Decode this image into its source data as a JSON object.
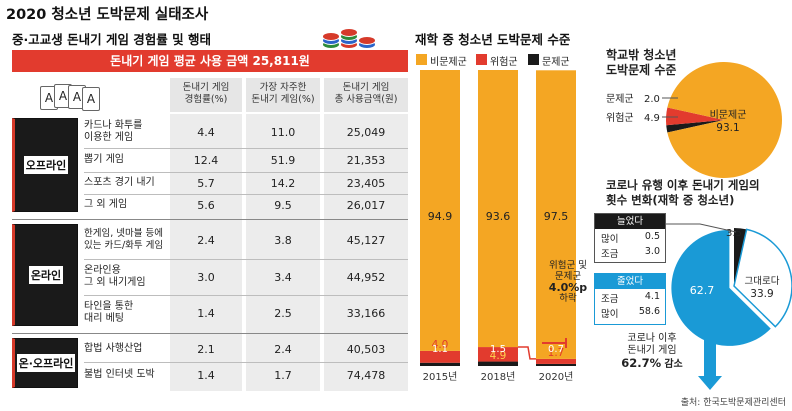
{
  "main_title": "2020 청소년 도박문제 실태조사",
  "left": {
    "title": "중·고교생 돈내기 게임 경험률 및 행태",
    "banner": "돈내기 게임 평균 사용 금액 25,811원",
    "headers": [
      "돈내기 게임\n경험률(%)",
      "가장 자주한\n돈내기 게임(%)",
      "돈내기 게임\n총 사용금액(원)"
    ],
    "cards": [
      "A",
      "A",
      "A",
      "A"
    ],
    "groups": [
      {
        "label": "오프라인",
        "rows": [
          {
            "name": "카드나 화투를\n이용한 게임",
            "v1": "4.4",
            "v2": "11.0",
            "v3": "25,049"
          },
          {
            "name": "뽑기 게임",
            "v1": "12.4",
            "v2": "51.9",
            "v3": "21,353"
          },
          {
            "name": "스포츠 경기 내기",
            "v1": "5.7",
            "v2": "14.2",
            "v3": "23,405"
          },
          {
            "name": "그 외 게임",
            "v1": "5.6",
            "v2": "9.5",
            "v3": "26,017"
          }
        ]
      },
      {
        "label": "온라인",
        "rows": [
          {
            "name": "한게임, 넷마블 등에\n있는 카드/화투 게임",
            "v1": "2.4",
            "v2": "3.8",
            "v3": "45,127"
          },
          {
            "name": "온라인용\n그 외 내기게임",
            "v1": "3.0",
            "v2": "3.4",
            "v3": "44,952"
          },
          {
            "name": "타인을 통한\n대리 베팅",
            "v1": "1.4",
            "v2": "2.5",
            "v3": "33,166"
          }
        ]
      },
      {
        "label": "온·오프라인",
        "rows": [
          {
            "name": "합법 사행산업",
            "v1": "2.1",
            "v2": "2.4",
            "v3": "40,503"
          },
          {
            "name": "불법 인터넷 도박",
            "v1": "1.4",
            "v2": "1.7",
            "v3": "74,478"
          }
        ]
      }
    ]
  },
  "middle": {
    "title": "재학 중 청소년 도박문제 수준",
    "legend": [
      "비문제군",
      "위험군",
      "문제군"
    ],
    "callout": [
      "위험군 및",
      "문제군",
      "4.0%p",
      "하락"
    ],
    "colors": {
      "nonproblem": "#f4a623",
      "risk": "#e23b2e",
      "problem": "#1a1a1a"
    }
  },
  "right_top": {
    "title": "학교밖 청소년\n도박문제 수준",
    "labels": {
      "nonproblem": "비문제군",
      "problem": "문제군",
      "risk": "위험군"
    }
  },
  "right_bottom": {
    "title": "코로나 유행 이후 돈내기 게임의\n횟수 변화(재학 중 청소년)",
    "decreased": {
      "title": "늘었다",
      "rows": [
        {
          "label": "많이",
          "value": "0.5"
        },
        {
          "label": "조금",
          "value": "3.0"
        }
      ]
    },
    "increased": {
      "title": "줄었다",
      "rows": [
        {
          "label": "조금",
          "value": "4.1"
        },
        {
          "label": "많이",
          "value": "58.6"
        }
      ]
    },
    "same_label": "그대로다",
    "conclusion": [
      "코로나 이후",
      "돈내기 게임",
      "62.7%",
      "감소"
    ]
  },
  "source": "출처: 한국도박문제관리센터",
  "chart_data": [
    {
      "type": "bar",
      "title": "재학 중 청소년 도박문제 수준",
      "categories": [
        "2015년",
        "2018년",
        "2020년"
      ],
      "series": [
        {
          "name": "비문제군",
          "values": [
            94.9,
            93.6,
            97.5
          ]
        },
        {
          "name": "위험군",
          "values": [
            4.0,
            4.9,
            1.7
          ]
        },
        {
          "name": "문제군",
          "values": [
            1.1,
            1.5,
            0.7
          ]
        }
      ],
      "stacked": true,
      "ylim": [
        0,
        100
      ]
    },
    {
      "type": "pie",
      "title": "학교밖 청소년 도박문제 수준",
      "labels": [
        "비문제군",
        "문제군",
        "위험군"
      ],
      "values": [
        93.1,
        2.0,
        4.9
      ]
    },
    {
      "type": "pie",
      "title": "코로나 유행 이후 돈내기 게임의 횟수 변화(재학 중 청소년)",
      "labels": [
        "늘었다",
        "그대로다",
        "줄었다"
      ],
      "values": [
        3.5,
        33.9,
        62.7
      ]
    }
  ]
}
